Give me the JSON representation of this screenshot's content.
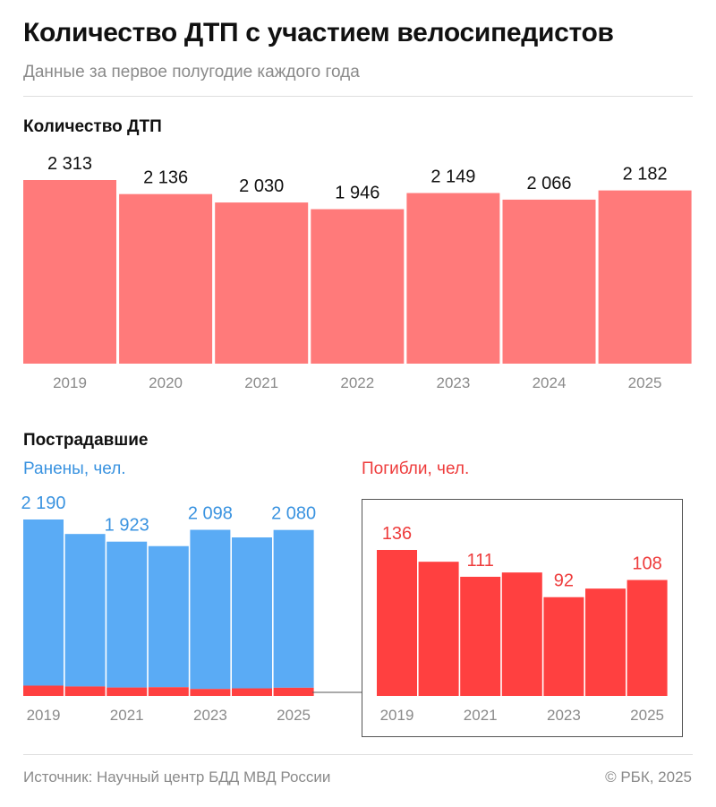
{
  "header": {
    "title": "Количество ДТП с участием велосипедистов",
    "subtitle": "Данные за первое полугодие каждого года"
  },
  "sections": {
    "accidents_title": "Количество ДТП",
    "victims_title": "Пострадавшие",
    "injured_label": "Ранены, чел.",
    "killed_label": "Погибли, чел."
  },
  "footer": {
    "source": "Источник: Научный центр БДД МВД России",
    "copyright": "© РБК, 2025"
  },
  "colors": {
    "accidents": "#ff7a7a",
    "injured": "#5aabf5",
    "killed": "#ff4040",
    "injured_text": "#3a93e0",
    "killed_text": "#ee3b3b",
    "axis_text": "#8a8a8a",
    "box_border": "#555555"
  },
  "chart_data": [
    {
      "type": "bar",
      "title": "Количество ДТП",
      "categories": [
        "2019",
        "2020",
        "2021",
        "2022",
        "2023",
        "2024",
        "2025"
      ],
      "values": [
        2313,
        2136,
        2030,
        1946,
        2149,
        2066,
        2182
      ],
      "value_labels": [
        "2 313",
        "2 136",
        "2 030",
        "1 946",
        "2 149",
        "2 066",
        "2 182"
      ],
      "ylim": [
        0,
        2313
      ]
    },
    {
      "type": "bar",
      "title": "Пострадавшие",
      "categories": [
        "2019",
        "2020",
        "2021",
        "2022",
        "2023",
        "2024",
        "2025"
      ],
      "tick_labels": [
        "2019",
        "",
        "2021",
        "",
        "2023",
        "",
        "2025"
      ],
      "series": [
        {
          "name": "Ранены, чел.",
          "values": [
            2190,
            2010,
            1923,
            1860,
            2098,
            1990,
            2080
          ],
          "value_labels": [
            "2 190",
            "",
            "1 923",
            "",
            "2 098",
            "",
            "2 080"
          ]
        },
        {
          "name": "Погибли, чел.",
          "values": [
            136,
            125,
            111,
            115,
            92,
            100,
            108
          ],
          "value_labels": [
            "136",
            "",
            "111",
            "",
            "92",
            "",
            "108"
          ]
        }
      ],
      "ylim": [
        0,
        2190
      ]
    }
  ]
}
